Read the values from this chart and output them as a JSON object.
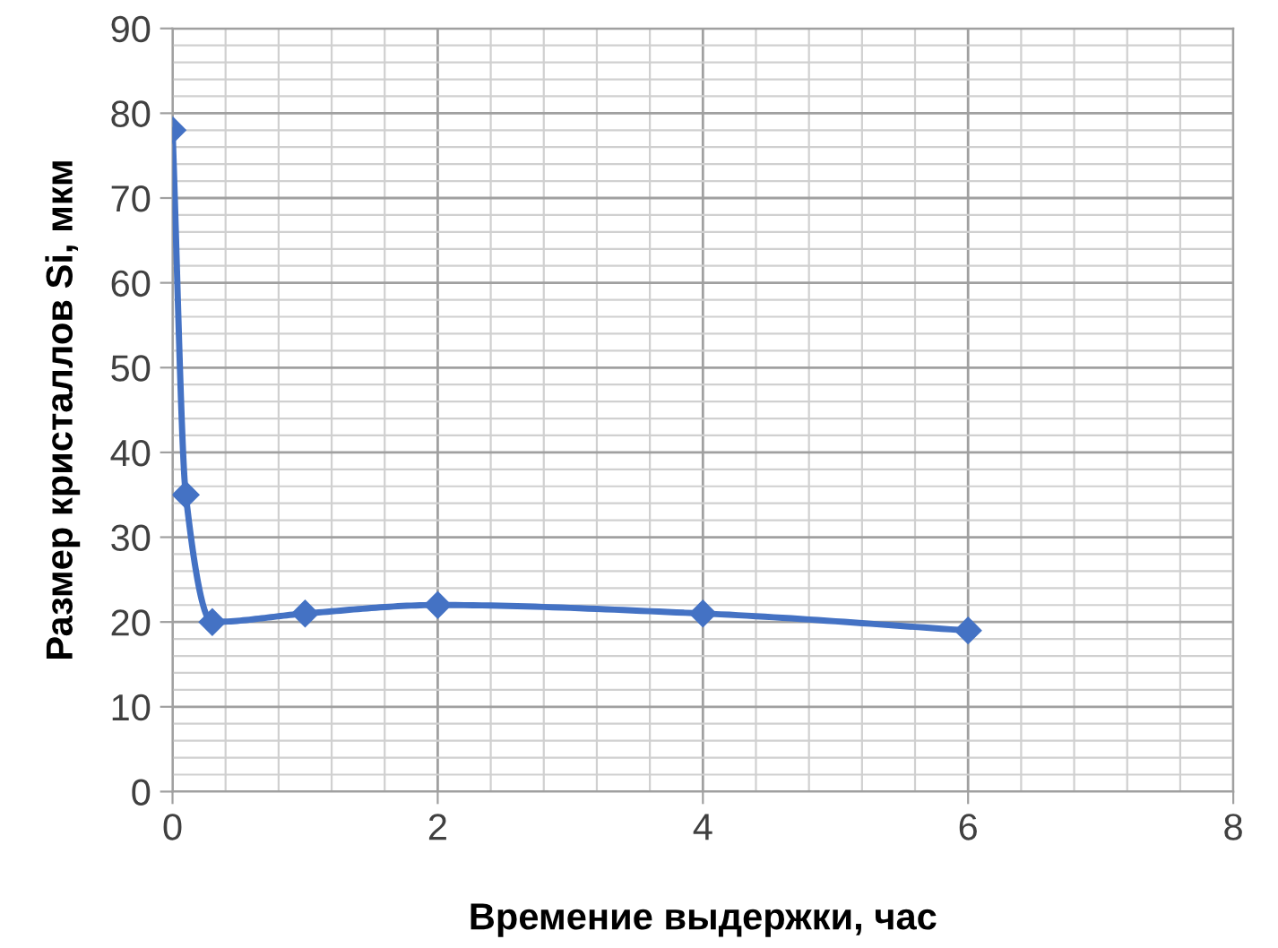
{
  "chart_data": {
    "type": "line",
    "xlabel": "Времение выдержки, час",
    "ylabel": "Размер кристаллов Si, мкм",
    "x": [
      0,
      0.1,
      0.3,
      1,
      2,
      4,
      6
    ],
    "series": [
      {
        "color": "#4472c4",
        "values": [
          78,
          35,
          20,
          21,
          22,
          21,
          19
        ]
      }
    ],
    "xlim": [
      0,
      8
    ],
    "xticks": [
      0,
      2,
      4,
      6,
      8
    ],
    "ylim": [
      0,
      90
    ],
    "yticks": [
      0,
      10,
      20,
      30,
      40,
      50,
      60,
      70,
      80,
      90
    ],
    "grid": true,
    "marker": "diamond",
    "line_style": "solid"
  }
}
